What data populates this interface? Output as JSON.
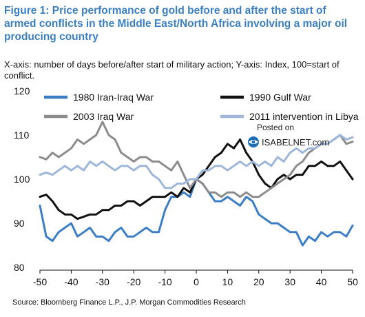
{
  "header": {
    "title": "Figure 1: Price performance of gold before and after the start of armed conflicts in the Middle East/North Africa involving a major oil producing country",
    "subtitle": "X-axis: number of days before/after start of military action; Y-axis: Index, 100=start of conflict."
  },
  "watermark": {
    "line1": "Posted on",
    "line2": "ISABELNET.com"
  },
  "footer": {
    "source": "Source: Bloomberg Finance L.P., J.P. Morgan Commodities Research"
  },
  "colors": {
    "iran_iraq": "#3b7ec6",
    "gulf_war": "#111111",
    "iraq_2003": "#8c8c8c",
    "libya_2011": "#9db6d9"
  },
  "chart_data": {
    "type": "line",
    "xlim": [
      -50,
      50
    ],
    "ylim": [
      80,
      120
    ],
    "x_ticks": [
      -50,
      -40,
      -30,
      -20,
      -10,
      0,
      10,
      20,
      30,
      40,
      50
    ],
    "y_ticks": [
      80,
      90,
      100,
      110,
      120
    ],
    "legend_position": "top",
    "series": [
      {
        "name": "1980 Iran-Iraq War",
        "color": "#3b7ec6",
        "x": [
          -50,
          -48,
          -46,
          -44,
          -42,
          -40,
          -38,
          -36,
          -34,
          -32,
          -30,
          -28,
          -26,
          -24,
          -22,
          -20,
          -18,
          -16,
          -14,
          -12,
          -10,
          -8,
          -6,
          -4,
          -2,
          0,
          2,
          4,
          6,
          8,
          10,
          12,
          14,
          16,
          18,
          20,
          22,
          24,
          26,
          28,
          30,
          32,
          34,
          36,
          38,
          40,
          42,
          44,
          46,
          48,
          50
        ],
        "y": [
          94,
          87,
          86,
          88,
          89,
          90,
          87,
          88,
          89,
          87,
          87,
          86,
          88,
          89,
          87,
          87,
          88,
          89,
          88,
          88,
          93,
          96,
          96,
          97,
          96,
          100,
          99,
          97,
          95,
          95,
          96,
          95,
          94,
          96,
          95,
          92,
          91,
          90,
          90,
          89,
          88,
          88,
          85,
          87,
          86,
          88,
          87,
          88,
          88,
          87,
          89.5
        ]
      },
      {
        "name": "1990 Gulf War",
        "color": "#111111",
        "x": [
          -50,
          -48,
          -46,
          -44,
          -42,
          -40,
          -38,
          -36,
          -34,
          -32,
          -30,
          -28,
          -26,
          -24,
          -22,
          -20,
          -18,
          -16,
          -14,
          -12,
          -10,
          -8,
          -6,
          -4,
          -2,
          0,
          2,
          4,
          6,
          8,
          10,
          12,
          14,
          16,
          18,
          20,
          22,
          24,
          26,
          28,
          30,
          32,
          34,
          36,
          38,
          40,
          42,
          44,
          46,
          48,
          50
        ],
        "y": [
          96,
          96.5,
          95,
          93,
          92,
          92,
          91,
          91.5,
          92,
          92,
          93,
          93,
          94,
          94,
          95,
          95,
          94,
          95,
          96,
          96,
          96,
          97,
          96,
          98,
          97,
          100,
          101,
          103,
          105,
          106,
          108,
          107,
          109,
          106,
          104,
          101,
          99,
          98,
          100,
          101,
          100,
          101,
          101,
          103,
          103,
          104,
          103,
          103,
          104,
          102,
          100
        ]
      },
      {
        "name": "2003 Iraq War",
        "color": "#8c8c8c",
        "x": [
          -50,
          -48,
          -46,
          -44,
          -42,
          -40,
          -38,
          -36,
          -34,
          -32,
          -30,
          -28,
          -26,
          -24,
          -22,
          -20,
          -18,
          -16,
          -14,
          -12,
          -10,
          -8,
          -6,
          -4,
          -2,
          0,
          2,
          4,
          6,
          8,
          10,
          12,
          14,
          16,
          18,
          20,
          22,
          24,
          26,
          28,
          30,
          32,
          34,
          36,
          38,
          40,
          42,
          44,
          46,
          48,
          50
        ],
        "y": [
          105,
          104.5,
          106,
          105,
          106,
          107,
          109,
          108,
          109,
          110,
          113,
          110,
          109,
          106,
          105,
          104,
          105,
          105,
          104,
          104,
          103,
          102,
          104,
          101,
          98,
          100,
          99,
          97,
          97,
          96,
          97,
          97,
          96,
          97,
          96,
          96,
          97,
          98,
          99,
          100,
          101,
          103,
          104,
          106,
          107,
          108,
          108,
          109,
          110,
          108,
          108.5
        ]
      },
      {
        "name": "2011 intervention in Libya",
        "color": "#9db6d9",
        "x": [
          -50,
          -48,
          -46,
          -44,
          -42,
          -40,
          -38,
          -36,
          -34,
          -32,
          -30,
          -28,
          -26,
          -24,
          -22,
          -20,
          -18,
          -16,
          -14,
          -12,
          -10,
          -8,
          -6,
          -4,
          -2,
          0,
          2,
          4,
          6,
          8,
          10,
          12,
          14,
          16,
          18,
          20,
          22,
          24,
          26,
          28,
          30,
          32,
          34,
          36,
          38,
          40,
          42,
          44,
          46,
          48,
          50
        ],
        "y": [
          101,
          101.5,
          101,
          102,
          103,
          102,
          103,
          102,
          104,
          103,
          104,
          103,
          102,
          103,
          103,
          102,
          103,
          103,
          101,
          100,
          98,
          98,
          99,
          99,
          100,
          100,
          102,
          102,
          103,
          103,
          102,
          103,
          104,
          103,
          104,
          103,
          104,
          103,
          105,
          104,
          106,
          107,
          106,
          107,
          107,
          108,
          108,
          109,
          110,
          109,
          109.5
        ]
      }
    ]
  }
}
